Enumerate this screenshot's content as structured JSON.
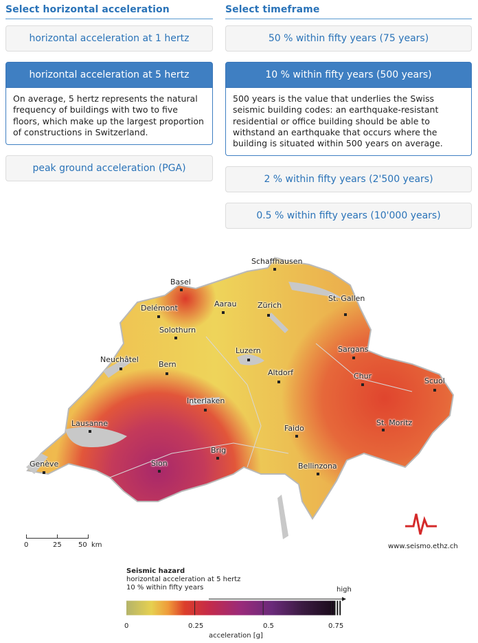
{
  "left": {
    "title": "Select horizontal acceleration",
    "options": [
      {
        "label": "horizontal acceleration at 1 hertz"
      },
      {
        "label": "horizontal acceleration at 5 hertz",
        "description": "On average, 5 hertz represents the natural frequency of buildings with two to five floors, which make up the largest proportion of constructions in Switzerland."
      },
      {
        "label": "peak ground acceleration (PGA)"
      }
    ]
  },
  "right": {
    "title": "Select timeframe",
    "options": [
      {
        "label": "50 % within fifty years (75 years)"
      },
      {
        "label": "10 % within fifty years (500 years)",
        "description": "500 years is the value that underlies the Swiss seismic building codes: an earthquake-resistant residential or office building should be able to withstand an earthquake that occurs where the building is situated within 500 years on average."
      },
      {
        "label": "2 % within fifty years (2'500 years)"
      },
      {
        "label": "0.5 % within fifty years (10'000 years)"
      }
    ]
  },
  "map": {
    "cities": [
      "Schaffhausen",
      "Basel",
      "Aarau",
      "Zürich",
      "St. Gallen",
      "Delémont",
      "Solothurn",
      "Neuchâtel",
      "Luzern",
      "Sargans",
      "Bern",
      "Altdorf",
      "Chur",
      "Scuol",
      "Interlaken",
      "Lausanne",
      "Faido",
      "St. Moritz",
      "Brig",
      "Genève",
      "Sion",
      "Bellinzona"
    ],
    "scale_labels": [
      "0",
      "25",
      "50",
      "km"
    ],
    "website": "www.seismo.ethz.ch"
  },
  "legend": {
    "title": "Seismic hazard",
    "line1": "horizontal acceleration at 5 hertz",
    "line2": "10 % within fifty years",
    "high": "high",
    "ticks": [
      "0",
      "0.25",
      "0.5",
      "0.75"
    ],
    "axis_label": "acceleration [g]"
  },
  "colors": {
    "accent": "#2a73b8",
    "active_bg": "#3f7fc2",
    "low": "#e8d24a",
    "mid": "#e05a2e",
    "high": "#a8286a"
  }
}
